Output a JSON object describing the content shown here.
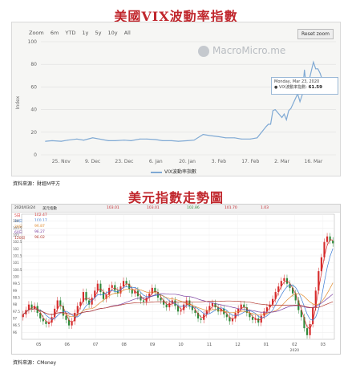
{
  "title1": "美國VIX波動率指數",
  "title2": "美元指數走勢圖",
  "source1": "資料來源：財經M平方",
  "source2": "資料來源：CMoney",
  "colors": {
    "title": "#c0262c",
    "vix_line": "#7fa9d4",
    "candle_up": "#d62b2b",
    "candle_down": "#2f8a3a"
  },
  "vix_panel": {
    "zoom_label": "Zoom",
    "zoom_options": [
      "6m",
      "YTD",
      "1y",
      "5y",
      "10y",
      "All"
    ],
    "reset_label": "Reset zoom",
    "watermark": "MacroMicro.me",
    "tooltip_date": "Monday, Mar 23, 2020",
    "tooltip_series": "● VIX波動率指數",
    "tooltip_value": "61.59",
    "legend": "VIX波動率指數"
  },
  "dxy_panel": {
    "header": [
      "2020/03/24",
      "美元指數",
      "103.01",
      "103.01",
      "102.86",
      "101.70",
      "1.03"
    ],
    "ma_labels": [
      "5日",
      "10日",
      "20日",
      "60日",
      "120日"
    ],
    "ma_values": [
      "102.47",
      "100.17",
      "99.87",
      "98.27",
      "98.02"
    ],
    "year_label": "2020"
  },
  "chart_data": [
    {
      "type": "line",
      "title": "美國VIX波動率指數",
      "ylabel": "Index",
      "ylim": [
        0,
        100
      ],
      "yticks": [
        0,
        20,
        40,
        60,
        80,
        100
      ],
      "xtick_labels": [
        "25. Nov",
        "9. Dec",
        "23. Dec",
        "6. Jan",
        "20. Jan",
        "3. Feb",
        "17. Feb",
        "2. Mar",
        "16. Mar"
      ],
      "x_dates": [
        "2019-11-18",
        "2019-11-21",
        "2019-11-25",
        "2019-11-28",
        "2019-12-02",
        "2019-12-05",
        "2019-12-09",
        "2019-12-12",
        "2019-12-16",
        "2019-12-19",
        "2019-12-23",
        "2019-12-26",
        "2019-12-30",
        "2020-01-02",
        "2020-01-06",
        "2020-01-09",
        "2020-01-13",
        "2020-01-16",
        "2020-01-20",
        "2020-01-23",
        "2020-01-27",
        "2020-01-30",
        "2020-02-03",
        "2020-02-06",
        "2020-02-10",
        "2020-02-13",
        "2020-02-17",
        "2020-02-20",
        "2020-02-24",
        "2020-02-25",
        "2020-02-26",
        "2020-02-27",
        "2020-02-28",
        "2020-03-02",
        "2020-03-03",
        "2020-03-04",
        "2020-03-05",
        "2020-03-06",
        "2020-03-09",
        "2020-03-10",
        "2020-03-11",
        "2020-03-12",
        "2020-03-13",
        "2020-03-16",
        "2020-03-17",
        "2020-03-18",
        "2020-03-19",
        "2020-03-20",
        "2020-03-23"
      ],
      "series": [
        {
          "name": "VIX波動率指數",
          "values": [
            12,
            12.5,
            12,
            13,
            14,
            13,
            15,
            14,
            12.5,
            12.5,
            13,
            12.5,
            14,
            14,
            13.5,
            12.5,
            12.5,
            12,
            12.5,
            13,
            18,
            17,
            16,
            15,
            15,
            14,
            14,
            15,
            25,
            27,
            27,
            39,
            40,
            33,
            36,
            31,
            39,
            41,
            54,
            47,
            53,
            75,
            57,
            82,
            76,
            76,
            72,
            66,
            61.59
          ]
        }
      ]
    },
    {
      "type": "line",
      "title": "美元指數走勢圖",
      "ylim": [
        95.5,
        104.5
      ],
      "yticks": [
        96,
        96.5,
        97,
        97.5,
        98,
        98.5,
        99,
        99.5,
        100,
        100.5,
        101,
        101.5,
        102,
        102.5,
        103,
        103.5,
        104
      ],
      "xtick_labels": [
        "05",
        "06",
        "07",
        "08",
        "09",
        "10",
        "11",
        "12",
        "01",
        "02",
        "03"
      ],
      "series": [
        {
          "name": "美元指數",
          "values": [
            97.3,
            97.6,
            98.0,
            97.7,
            97.9,
            97.4,
            97.0,
            96.8,
            96.6,
            96.7,
            97.1,
            97.7,
            98.3,
            97.9,
            97.2,
            96.9,
            96.5,
            96.8,
            97.4,
            97.9,
            98.2,
            98.9,
            98.3,
            98.0,
            98.5,
            99.0,
            99.5,
            98.9,
            98.4,
            98.7,
            99.2,
            99.4,
            99.0,
            98.8,
            99.3,
            99.7,
            99.5,
            99.1,
            98.8,
            99.0,
            98.6,
            98.3,
            98.2,
            98.5,
            98.8,
            99.2,
            98.9,
            98.5,
            98.3,
            98.0,
            97.8,
            98.1,
            98.3,
            97.9,
            97.5,
            97.6,
            98.0,
            98.3,
            97.9,
            97.6,
            97.4,
            97.0,
            96.9,
            97.3,
            97.6,
            97.9,
            98.1,
            97.8,
            97.5,
            97.7,
            97.3,
            97.1,
            96.8,
            97.0,
            97.4,
            97.7,
            98.0,
            97.8,
            97.4,
            97.1,
            96.9,
            97.0,
            96.7,
            97.2,
            97.5,
            97.8,
            98.0,
            98.4,
            98.9,
            99.3,
            99.7,
            99.9,
            99.5,
            99.2,
            98.8,
            98.3,
            97.6,
            97.1,
            96.3,
            95.8,
            96.6,
            97.8,
            99.0,
            100.4,
            101.4,
            102.5,
            102.9,
            102.6,
            102.4
          ]
        }
      ]
    }
  ]
}
